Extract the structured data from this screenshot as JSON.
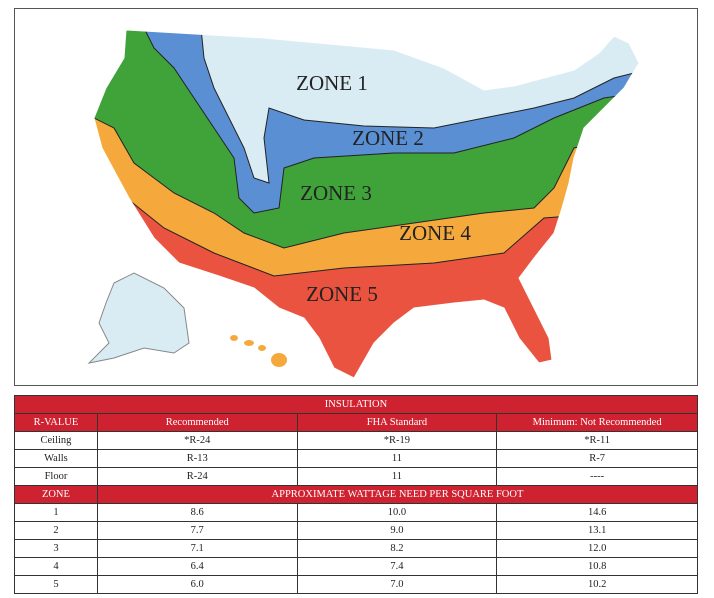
{
  "map": {
    "zones": [
      {
        "label": "ZONE 1"
      },
      {
        "label": "ZONE 2"
      },
      {
        "label": "ZONE 3"
      },
      {
        "label": "ZONE 4"
      },
      {
        "label": "ZONE 5"
      }
    ]
  },
  "table": {
    "title": "INSULATION",
    "header": [
      "R-VALUE",
      "Recommended",
      "FHA Standard",
      "Minimum: Not Recommended"
    ],
    "rows": [
      [
        "Ceiling",
        "*R-24",
        "*R-19",
        "*R-11"
      ],
      [
        "Walls",
        "R-13",
        "11",
        "R-7"
      ],
      [
        "Floor",
        "R-24",
        "11",
        "----"
      ]
    ],
    "zone_header": [
      "ZONE",
      "APPROXIMATE WATTAGE NEED PER SQUARE FOOT"
    ],
    "zone_rows": [
      [
        "1",
        "8.6",
        "10.0",
        "14.6"
      ],
      [
        "2",
        "7.7",
        "9.0",
        "13.1"
      ],
      [
        "3",
        "7.1",
        "8.2",
        "12.0"
      ],
      [
        "4",
        "6.4",
        "7.4",
        "10.8"
      ],
      [
        "5",
        "6.0",
        "7.0",
        "10.2"
      ]
    ]
  }
}
